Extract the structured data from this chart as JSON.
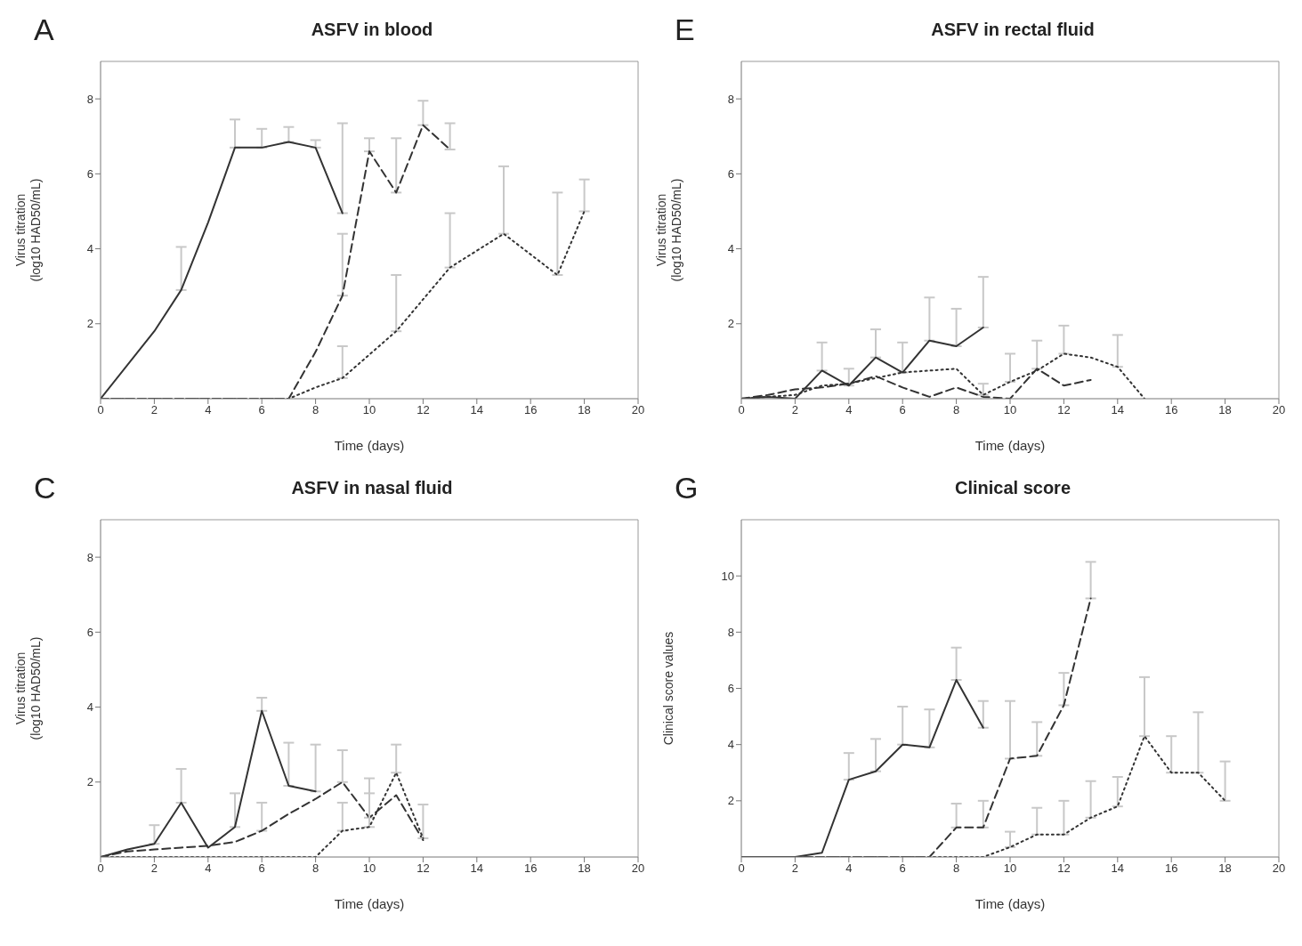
{
  "chart_data": [
    {
      "type": "line",
      "title": "ASFV in blood",
      "xlabel": "Time (days)",
      "ylabel": "Virus titration\n(log10 HAD50/mL)",
      "annotations": [
        "A"
      ],
      "xlim": [
        0,
        20
      ],
      "xticks": [
        0,
        2,
        4,
        6,
        8,
        10,
        12,
        14,
        16,
        18,
        20
      ],
      "ylim": [
        0,
        9
      ],
      "yticks": [
        2,
        4,
        6,
        8
      ],
      "grid": false,
      "legend": false,
      "marker": "none",
      "series": [
        {
          "color": "#333333",
          "line_style": "solid",
          "x": [
            0,
            2,
            3,
            4,
            5,
            6,
            7,
            8,
            9
          ],
          "values": [
            0,
            1.8,
            2.9,
            4.7,
            6.7,
            6.7,
            6.85,
            6.7,
            4.95
          ],
          "errors": [
            null,
            null,
            [
              2.9,
              4.05
            ],
            null,
            [
              6.7,
              7.45
            ],
            [
              6.7,
              7.2
            ],
            [
              6.85,
              7.25
            ],
            [
              6.7,
              6.9
            ],
            [
              4.95,
              7.35
            ]
          ]
        },
        {
          "color": "#333333",
          "line_style": "dashed",
          "x": [
            0,
            7,
            8,
            9,
            10,
            11,
            12,
            13
          ],
          "values": [
            0,
            0,
            1.25,
            2.75,
            6.6,
            5.5,
            7.3,
            6.65
          ],
          "errors": [
            null,
            null,
            null,
            [
              2.75,
              4.4
            ],
            [
              6.6,
              6.95
            ],
            [
              5.5,
              6.95
            ],
            [
              7.3,
              7.95
            ],
            [
              6.65,
              7.35
            ]
          ]
        },
        {
          "color": "#333333",
          "line_style": "dotted",
          "x": [
            0,
            7,
            8,
            9,
            11,
            13,
            15,
            17,
            18
          ],
          "values": [
            0,
            0,
            0.3,
            0.55,
            1.8,
            3.5,
            4.4,
            3.3,
            5.0
          ],
          "errors": [
            null,
            null,
            null,
            [
              0.55,
              1.4
            ],
            [
              1.8,
              3.3
            ],
            [
              3.5,
              4.95
            ],
            [
              4.4,
              6.2
            ],
            [
              3.3,
              5.5
            ],
            [
              5.0,
              5.85
            ]
          ]
        }
      ]
    },
    {
      "type": "line",
      "title": "ASFV in rectal fluid",
      "xlabel": "Time (days)",
      "ylabel": "Virus titration\n(log10 HAD50/mL)",
      "annotations": [
        "E"
      ],
      "xlim": [
        0,
        20
      ],
      "xticks": [
        0,
        2,
        4,
        6,
        8,
        10,
        12,
        14,
        16,
        18,
        20
      ],
      "ylim": [
        0,
        9
      ],
      "yticks": [
        2,
        4,
        6,
        8
      ],
      "grid": false,
      "legend": false,
      "marker": "none",
      "series": [
        {
          "color": "#333333",
          "line_style": "solid",
          "x": [
            0,
            1,
            2,
            3,
            4,
            5,
            6,
            7,
            8,
            9
          ],
          "values": [
            0,
            0.05,
            0,
            0.75,
            0.35,
            1.1,
            0.7,
            1.55,
            1.4,
            1.9
          ],
          "errors": [
            null,
            null,
            null,
            [
              0.75,
              1.5
            ],
            [
              0.35,
              0.8
            ],
            [
              1.1,
              1.85
            ],
            [
              0.7,
              1.5
            ],
            [
              1.55,
              2.7
            ],
            [
              1.4,
              2.4
            ],
            [
              1.9,
              3.25
            ]
          ]
        },
        {
          "color": "#333333",
          "line_style": "dashed",
          "x": [
            0,
            1,
            2,
            3,
            4,
            5,
            6,
            7,
            8,
            9,
            10,
            11,
            12,
            13
          ],
          "values": [
            0,
            0.1,
            0.25,
            0.3,
            0.4,
            0.6,
            0.3,
            0.05,
            0.3,
            0.05,
            0,
            0.8,
            0.35,
            0.5
          ],
          "errors": [
            null,
            null,
            null,
            null,
            null,
            null,
            null,
            null,
            null,
            null,
            null,
            [
              0.8,
              1.55
            ],
            null,
            null
          ]
        },
        {
          "color": "#333333",
          "line_style": "dotted",
          "x": [
            0,
            2,
            3,
            4,
            5,
            6,
            8,
            9,
            10,
            11,
            12,
            13,
            14,
            15
          ],
          "values": [
            0,
            0.1,
            0.35,
            0.4,
            0.55,
            0.7,
            0.8,
            0.1,
            0.45,
            0.75,
            1.2,
            1.1,
            0.85,
            0
          ],
          "errors": [
            null,
            null,
            null,
            null,
            null,
            null,
            null,
            [
              0.1,
              0.4
            ],
            [
              0.45,
              1.2
            ],
            null,
            [
              1.2,
              1.95
            ],
            null,
            [
              0.85,
              1.7
            ],
            null
          ]
        }
      ]
    },
    {
      "type": "line",
      "title": "ASFV in nasal fluid",
      "xlabel": "Time (days)",
      "ylabel": "Virus titration\n(log10 HAD50/mL)",
      "annotations": [
        "C"
      ],
      "xlim": [
        0,
        20
      ],
      "xticks": [
        0,
        2,
        4,
        6,
        8,
        10,
        12,
        14,
        16,
        18,
        20
      ],
      "ylim": [
        0,
        9
      ],
      "yticks": [
        2,
        4,
        6,
        8
      ],
      "grid": false,
      "legend": false,
      "marker": "none",
      "series": [
        {
          "color": "#333333",
          "line_style": "solid",
          "x": [
            0,
            1,
            2,
            3,
            4,
            5,
            6,
            7,
            8
          ],
          "values": [
            0,
            0.2,
            0.35,
            1.45,
            0.25,
            0.8,
            3.9,
            1.9,
            1.75
          ],
          "errors": [
            null,
            null,
            [
              0.35,
              0.85
            ],
            [
              1.45,
              2.35
            ],
            null,
            [
              0.8,
              1.7
            ],
            [
              3.9,
              4.25
            ],
            [
              1.9,
              3.05
            ],
            [
              1.75,
              3.0
            ]
          ]
        },
        {
          "color": "#333333",
          "line_style": "dashed",
          "x": [
            0,
            1,
            2,
            3,
            4,
            5,
            6,
            7,
            8,
            9,
            10,
            11,
            12
          ],
          "values": [
            0,
            0.15,
            0.2,
            0.25,
            0.3,
            0.4,
            0.7,
            1.15,
            1.55,
            2.0,
            1.05,
            1.65,
            0.45
          ],
          "errors": [
            null,
            null,
            null,
            null,
            null,
            null,
            [
              0.7,
              1.45
            ],
            null,
            null,
            [
              2.0,
              2.85
            ],
            [
              1.05,
              2.1
            ],
            null,
            null
          ]
        },
        {
          "color": "#333333",
          "line_style": "dotted",
          "x": [
            0,
            8,
            9,
            10,
            11,
            12
          ],
          "values": [
            0,
            0,
            0.7,
            0.8,
            2.25,
            0.5
          ],
          "errors": [
            null,
            null,
            [
              0.7,
              1.45
            ],
            [
              0.8,
              1.7
            ],
            [
              2.25,
              3.0
            ],
            [
              0.5,
              1.4
            ]
          ]
        }
      ]
    },
    {
      "type": "line",
      "title": "Clinical score",
      "xlabel": "Time (days)",
      "ylabel": "Clinical score values",
      "annotations": [
        "G"
      ],
      "xlim": [
        0,
        20
      ],
      "xticks": [
        0,
        2,
        4,
        6,
        8,
        10,
        12,
        14,
        16,
        18,
        20
      ],
      "ylim": [
        0,
        12
      ],
      "yticks": [
        2,
        4,
        6,
        8,
        10
      ],
      "grid": false,
      "legend": false,
      "marker": "none",
      "series": [
        {
          "color": "#333333",
          "line_style": "solid",
          "x": [
            0,
            2,
            3,
            4,
            5,
            6,
            7,
            8,
            9
          ],
          "values": [
            0,
            0,
            0.15,
            2.75,
            3.05,
            4.0,
            3.9,
            6.3,
            4.6
          ],
          "errors": [
            null,
            null,
            null,
            [
              2.75,
              3.7
            ],
            [
              3.05,
              4.2
            ],
            [
              4.0,
              5.35
            ],
            [
              3.9,
              5.25
            ],
            [
              6.3,
              7.45
            ],
            [
              4.6,
              5.55
            ]
          ]
        },
        {
          "color": "#333333",
          "line_style": "dashed",
          "x": [
            0,
            7,
            8,
            9,
            10,
            11,
            12,
            13
          ],
          "values": [
            0,
            0,
            1.05,
            1.05,
            3.5,
            3.6,
            5.4,
            9.2
          ],
          "errors": [
            null,
            null,
            [
              1.05,
              1.9
            ],
            [
              1.05,
              2.0
            ],
            [
              3.5,
              5.55
            ],
            [
              3.6,
              4.8
            ],
            [
              5.4,
              6.55
            ],
            [
              9.2,
              10.5
            ]
          ]
        },
        {
          "color": "#333333",
          "line_style": "dotted",
          "x": [
            0,
            9,
            10,
            11,
            12,
            13,
            14,
            15,
            16,
            17,
            18
          ],
          "values": [
            0,
            0,
            0.35,
            0.8,
            0.8,
            1.4,
            1.8,
            4.3,
            3.0,
            3.0,
            2.0
          ],
          "errors": [
            null,
            null,
            [
              0.35,
              0.9
            ],
            [
              0.8,
              1.75
            ],
            [
              0.8,
              2.0
            ],
            [
              1.4,
              2.7
            ],
            [
              1.8,
              2.85
            ],
            [
              4.3,
              6.4
            ],
            [
              3.0,
              4.3
            ],
            [
              3.0,
              5.15
            ],
            [
              2.0,
              3.4
            ]
          ]
        }
      ]
    }
  ]
}
